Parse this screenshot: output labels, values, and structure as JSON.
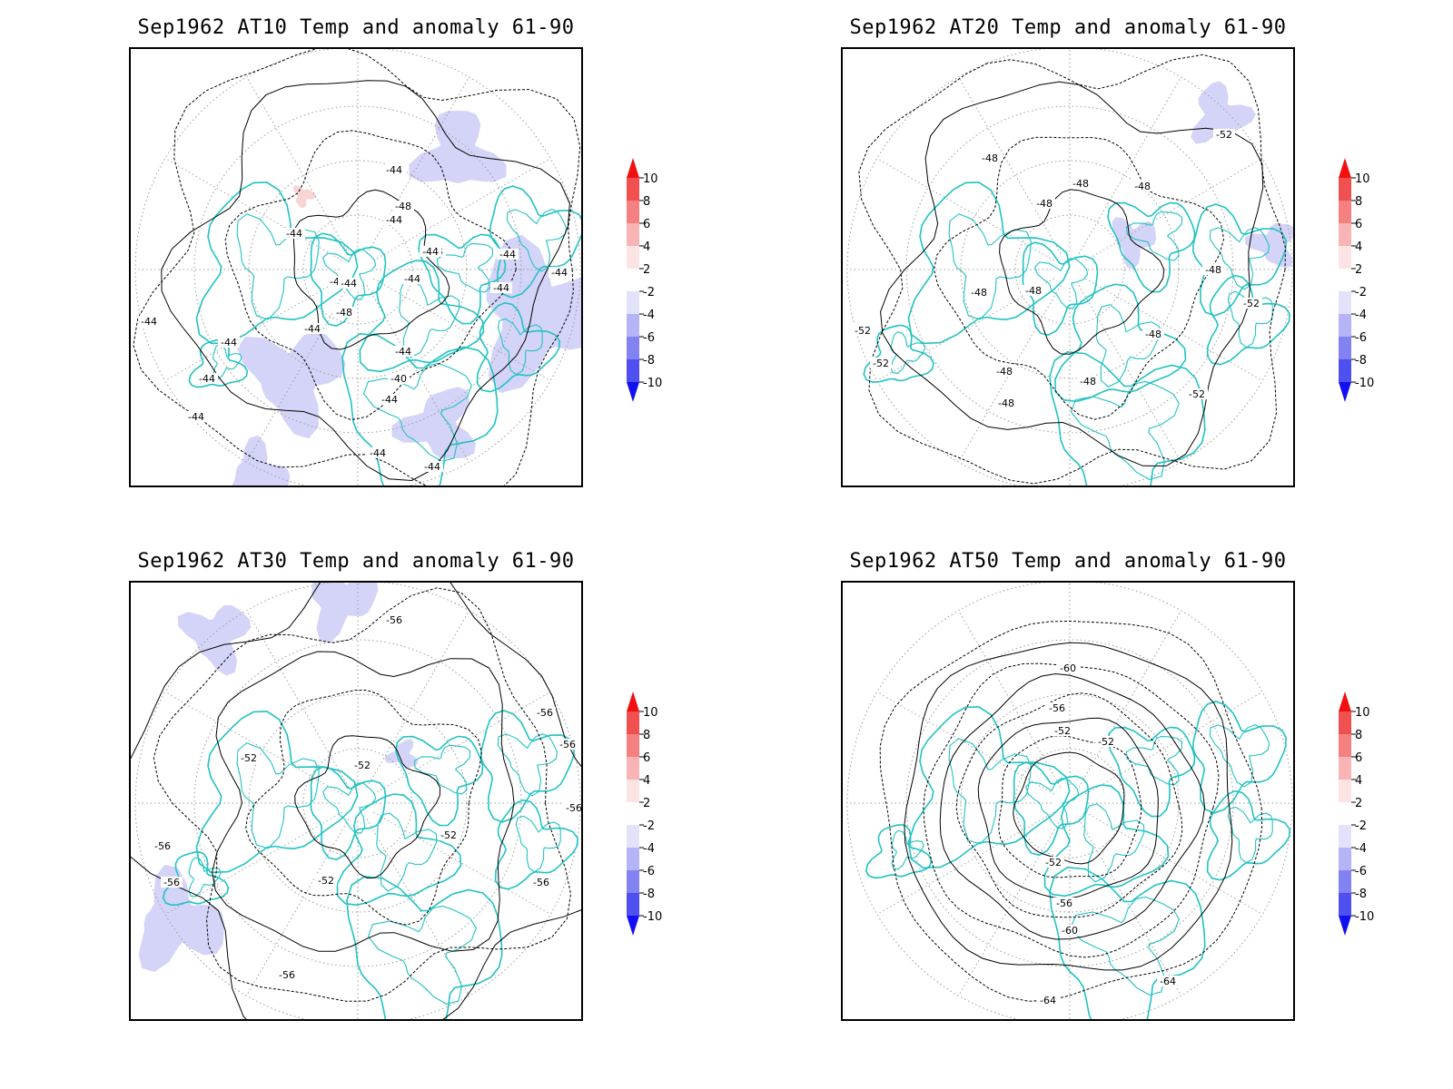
{
  "panels": [
    {
      "id": "at10",
      "title": "Sep1962 AT10 Temp and anomaly 61-90",
      "contour_labels": [
        "-44",
        "-44",
        "-48",
        "-44",
        "-44",
        "-44",
        "-44",
        "-44",
        "-48",
        "-44",
        "-44",
        "-44",
        "-44",
        "-44",
        "-44",
        "-40",
        "-44",
        "-44",
        "-44",
        "-44",
        "-44",
        "-44",
        "-44"
      ]
    },
    {
      "id": "at20",
      "title": "Sep1962 AT20 Temp and anomaly 61-90",
      "contour_labels": [
        "-52",
        "-48",
        "-48",
        "-48",
        "-48",
        "-48",
        "-48",
        "-48",
        "-52",
        "-52",
        "-52",
        "-48",
        "-48",
        "-48",
        "-48",
        "-52"
      ]
    },
    {
      "id": "at30",
      "title": "Sep1962 AT30 Temp and anomaly 61-90",
      "contour_labels": [
        "-56",
        "-56",
        "-56",
        "-56",
        "-52",
        "-52",
        "-52",
        "-56",
        "-56",
        "-52",
        "-56",
        "-56"
      ]
    },
    {
      "id": "at50",
      "title": "Sep1962 AT50 Temp and anomaly 61-90",
      "contour_labels": [
        "-60",
        "-56",
        "-52",
        "-52",
        "-52",
        "-56",
        "-60",
        "-64",
        "-64"
      ]
    }
  ],
  "colorbar": {
    "levels": [
      "10",
      "8",
      "6",
      "4",
      "2",
      "-2",
      "-4",
      "-6",
      "-8",
      "-10"
    ],
    "colors": {
      "pos_10": "#f01010",
      "pos_8": "#f05050",
      "pos_6": "#f48080",
      "pos_4": "#f8b4b4",
      "pos_2": "#fde4e4",
      "neg_2": "#e2e2fa",
      "neg_4": "#b4b4f6",
      "neg_6": "#8282f2",
      "neg_8": "#5050f0",
      "neg_10": "#1010f0"
    }
  },
  "colors": {
    "coastline": "#22c2c2",
    "contour": "#000000",
    "grid": "#9a9a9a",
    "anomaly_negative_fill": "#d4d4f8",
    "anomaly_positive_fill": "#f8d4d4"
  }
}
